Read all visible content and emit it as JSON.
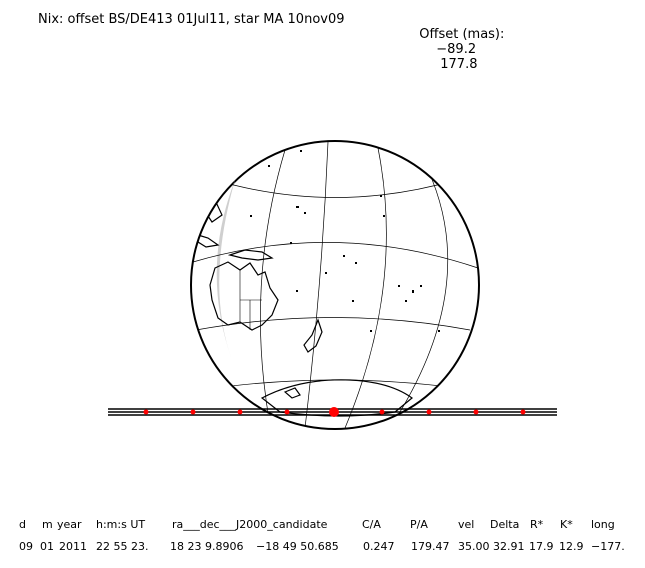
{
  "header": {
    "title": "Nix: offset BS/DE413 01Jul11, star MA 10nov09",
    "offset_label": "Offset (mas):",
    "offset_ra": "−89.2",
    "offset_dec": "177.8"
  },
  "map": {
    "projection": "orthographic",
    "globe_color": "#000000",
    "track_color": "#000000",
    "event_marker_color": "#ff0000",
    "land": [
      "Australia",
      "New Zealand",
      "Antarctica",
      "Pacific islands"
    ]
  },
  "table": {
    "headers": [
      "d",
      "m",
      "year",
      "h:m:s UT",
      "ra___dec___J2000_candidate",
      "C/A",
      "P/A",
      "vel",
      "Delta",
      "R*",
      "K*",
      "long"
    ],
    "values": [
      "09",
      "01",
      "2011",
      "22 55 23.",
      "18 23  9.8906",
      "−18 49  50.685",
      "0.247",
      "179.47",
      "35.00",
      "32.91",
      "17.9",
      "12.9",
      "−177."
    ]
  }
}
